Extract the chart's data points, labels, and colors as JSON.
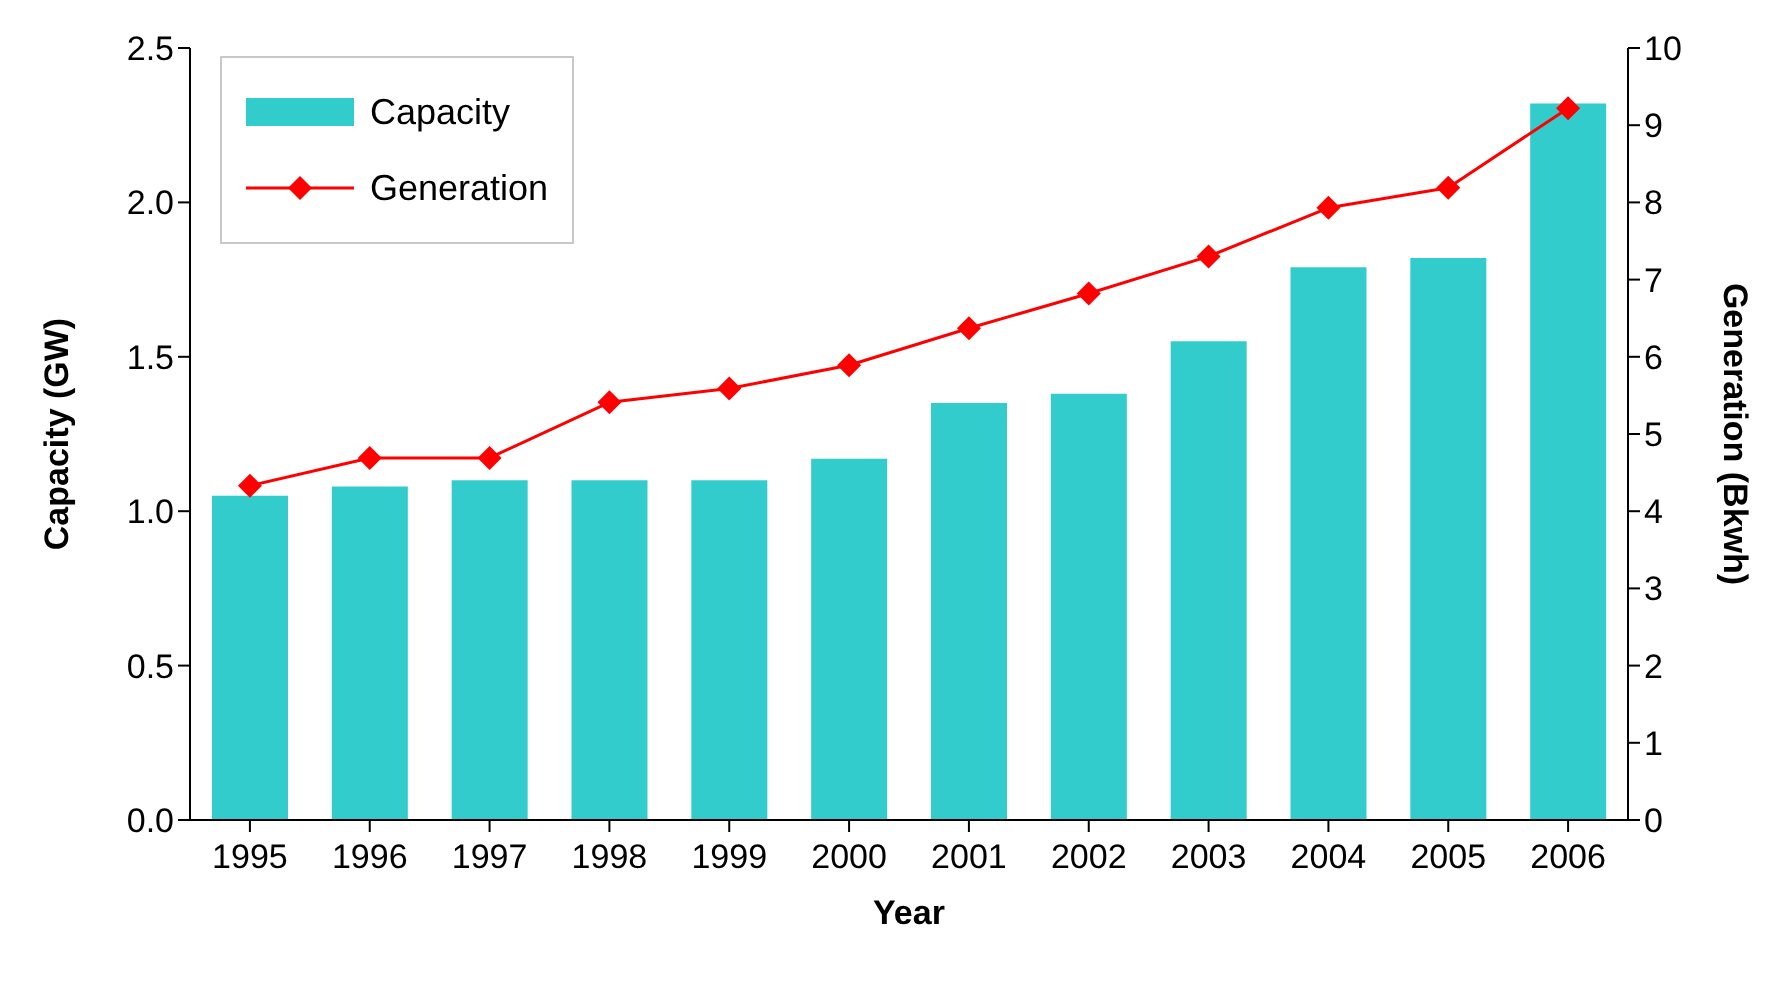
{
  "chart_data": {
    "type": "bar",
    "xlabel": "Year",
    "ylabel": "Capacity (GW)",
    "y2label": "Generation (Bkwh)",
    "categories": [
      "1995",
      "1996",
      "1997",
      "1998",
      "1999",
      "2000",
      "2001",
      "2002",
      "2003",
      "2004",
      "2005",
      "2006"
    ],
    "series": [
      {
        "name": "Capacity",
        "color": "#33cccc",
        "values": [
          1.05,
          1.08,
          1.1,
          1.1,
          1.1,
          1.17,
          1.35,
          1.38,
          1.55,
          1.79,
          1.82,
          2.32
        ]
      },
      {
        "name": "Generation",
        "type": "line",
        "axis": "y2",
        "color": "#ff0000",
        "marker": "diamond",
        "values": [
          4.33,
          4.69,
          4.69,
          5.41,
          5.59,
          5.89,
          6.37,
          6.82,
          7.3,
          7.93,
          8.19,
          9.22
        ]
      }
    ],
    "ylim": [
      0,
      2.5
    ],
    "yticks": [
      {
        "value": 0,
        "label": "0.0"
      },
      {
        "value": 0.5,
        "label": "0.5"
      },
      {
        "value": 1,
        "label": "1.0"
      },
      {
        "value": 1.5,
        "label": "1.5"
      },
      {
        "value": 2,
        "label": "2.0"
      },
      {
        "value": 2.5,
        "label": "2.5"
      }
    ],
    "y2lim": [
      0,
      10
    ],
    "y2ticks": [
      0,
      1,
      2,
      3,
      4,
      5,
      6,
      7,
      8,
      9,
      10
    ],
    "legend": "top left",
    "grid": false
  }
}
